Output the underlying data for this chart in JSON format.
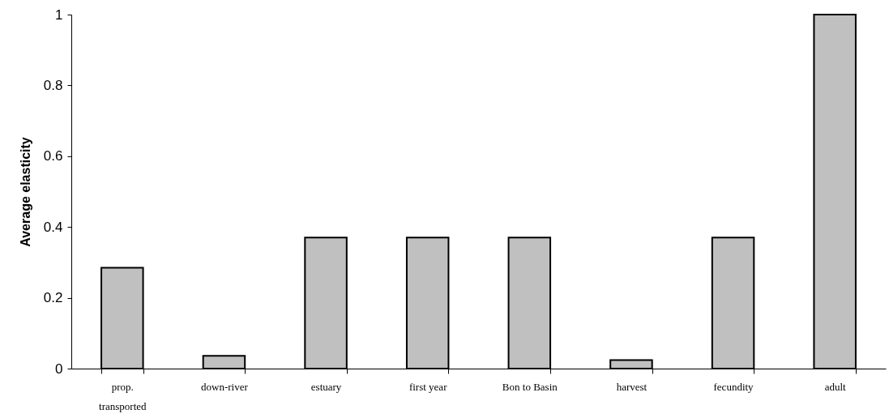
{
  "chart_data": {
    "type": "bar",
    "ylabel": "Average elasticity",
    "categories": [
      "prop. transported",
      "down-river",
      "estuary",
      "first year",
      "Bon to Basin",
      "harvest",
      "fecundity",
      "adult"
    ],
    "values": [
      0.285,
      0.036,
      0.37,
      0.37,
      0.37,
      0.024,
      0.37,
      1
    ],
    "color": "#c0c0c0",
    "ylim": [
      0,
      1
    ],
    "yticks": [
      0,
      0.2,
      0.4,
      0.6,
      0.8,
      1
    ],
    "grid": false
  }
}
